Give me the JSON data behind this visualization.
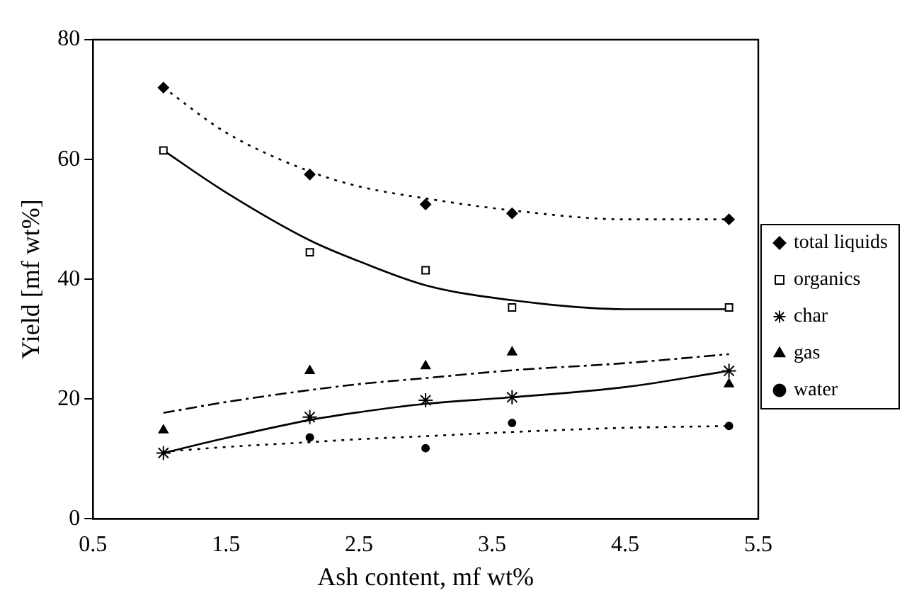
{
  "chart_data": {
    "type": "scatter",
    "xlabel": "Ash content, mf wt%",
    "ylabel": "Yield [mf wt%]",
    "xlim": [
      0.5,
      5.5
    ],
    "xticks": [
      0.5,
      1.5,
      2.5,
      3.5,
      4.5,
      5.5
    ],
    "ylim": [
      0,
      80
    ],
    "yticks": [
      0,
      20,
      40,
      60,
      80
    ],
    "grid": false,
    "legend": "right",
    "x": [
      1.03,
      2.13,
      3.0,
      3.65,
      5.28
    ],
    "series": [
      {
        "name": "total liquids",
        "color": "#000000",
        "marker": "diamond",
        "values": [
          72,
          57.5,
          52.5,
          51,
          50
        ]
      },
      {
        "name": "organics",
        "color": "#000000",
        "marker": "square",
        "values": [
          61.5,
          44.5,
          41.5,
          35.3,
          35.3
        ]
      },
      {
        "name": "char",
        "color": "#000000",
        "marker": "cross",
        "values": [
          11,
          17,
          19.8,
          20.3,
          24.7
        ]
      },
      {
        "name": "gas",
        "color": "#000000",
        "marker": "triangle",
        "values": [
          14.8,
          24.7,
          25.5,
          27.8,
          22.5
        ]
      },
      {
        "name": "water",
        "color": "#000000",
        "marker": "circle",
        "values": [
          null,
          13.6,
          11.8,
          16,
          15.5
        ]
      },
      {
        "type": "line",
        "color": "#000000",
        "marker": "none",
        "line_style": "dotted",
        "x": [
          1.03,
          1.5,
          2.13,
          2.5,
          3.0,
          3.65,
          4.5,
          5.28
        ],
        "values": [
          72,
          64.5,
          58,
          55.5,
          53.5,
          51.5,
          50,
          50
        ]
      },
      {
        "type": "line",
        "color": "#000000",
        "marker": "none",
        "line_style": "solid",
        "x": [
          1.03,
          1.5,
          2.13,
          2.5,
          3.0,
          3.65,
          4.5,
          5.28
        ],
        "values": [
          61.5,
          54.5,
          46.5,
          43,
          39,
          36.5,
          35,
          35
        ]
      },
      {
        "type": "line",
        "color": "#000000",
        "marker": "none",
        "line_style": "dashed",
        "x": [
          1.03,
          1.5,
          2.13,
          2.5,
          3.0,
          3.65,
          4.5,
          5.28
        ],
        "values": [
          17.7,
          19.5,
          21.5,
          22.5,
          23.5,
          24.8,
          26,
          27.5
        ]
      },
      {
        "type": "line",
        "color": "#000000",
        "marker": "none",
        "line_style": "solid",
        "x": [
          1.03,
          1.5,
          2.13,
          2.5,
          3.0,
          3.65,
          4.5,
          5.28
        ],
        "values": [
          11,
          13.5,
          16.5,
          17.8,
          19.2,
          20.3,
          22,
          24.7
        ]
      },
      {
        "type": "line",
        "color": "#000000",
        "marker": "none",
        "line_style": "dotted",
        "x": [
          1.03,
          1.5,
          2.13,
          2.5,
          3.0,
          3.65,
          4.5,
          5.28
        ],
        "values": [
          11.2,
          12,
          12.8,
          13.3,
          13.8,
          14.5,
          15.2,
          15.5
        ]
      }
    ]
  }
}
